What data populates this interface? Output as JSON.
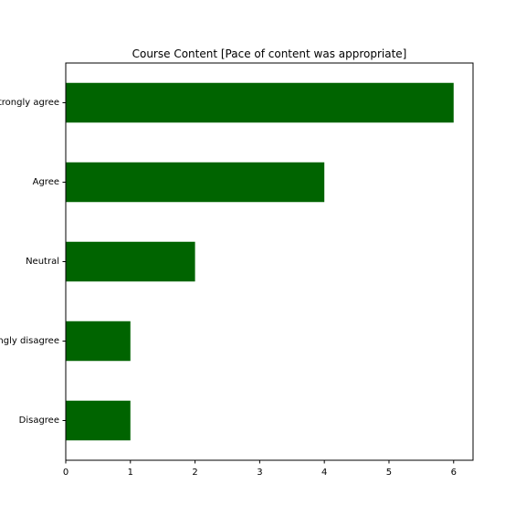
{
  "chart_data": {
    "type": "bar",
    "orientation": "horizontal",
    "title": "Course Content [Pace of content was appropriate]",
    "xlabel": "",
    "ylabel": "",
    "categories": [
      "Strongly agree",
      "Agree",
      "Neutral",
      "Strongly disagree",
      "Disagree"
    ],
    "values": [
      6,
      4,
      2,
      1,
      1
    ],
    "xlim": [
      0,
      6.3
    ],
    "xticks": [
      0,
      1,
      2,
      3,
      4,
      5,
      6
    ],
    "grid": false,
    "legend": "none",
    "bar_color": "#006400"
  }
}
